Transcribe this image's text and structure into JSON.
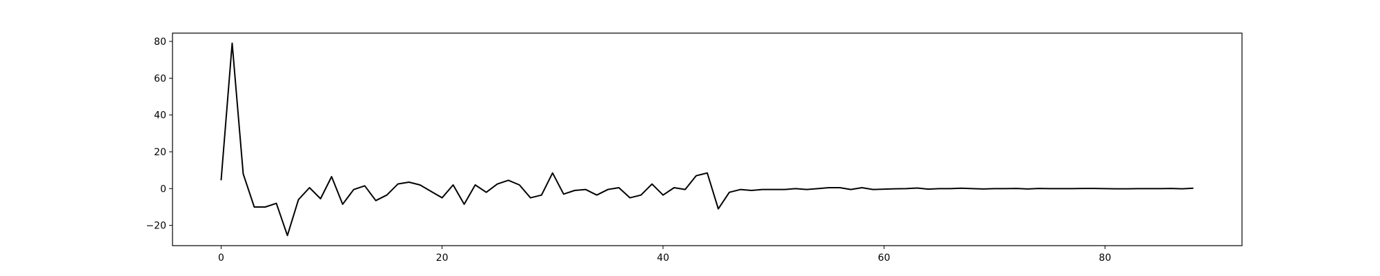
{
  "chart_data": {
    "type": "line",
    "title": "",
    "xlabel": "",
    "ylabel": "",
    "xlim": [
      -4.4,
      92.4
    ],
    "ylim": [
      -31,
      84.5
    ],
    "xticks": [
      0,
      20,
      40,
      60,
      80
    ],
    "yticks": [
      -20,
      0,
      20,
      40,
      60,
      80
    ],
    "xtick_labels": [
      "0",
      "20",
      "40",
      "60",
      "80"
    ],
    "ytick_labels": [
      "−20",
      "0",
      "20",
      "40",
      "60",
      "80"
    ],
    "grid": false,
    "legend": "none",
    "series": [
      {
        "color": "#000000",
        "x": [
          0,
          1,
          2,
          3,
          4,
          5,
          6,
          7,
          8,
          9,
          10,
          11,
          12,
          13,
          14,
          15,
          16,
          17,
          18,
          19,
          20,
          21,
          22,
          23,
          24,
          25,
          26,
          27,
          28,
          29,
          30,
          31,
          32,
          33,
          34,
          35,
          36,
          37,
          38,
          39,
          40,
          41,
          42,
          43,
          44,
          45,
          46,
          47,
          48,
          49,
          50,
          51,
          52,
          53,
          54,
          55,
          56,
          57,
          58,
          59,
          60,
          61,
          62,
          63,
          64,
          65,
          66,
          67,
          68,
          69,
          70,
          71,
          72,
          73,
          74,
          75,
          76,
          77,
          78,
          79,
          80,
          81,
          82,
          83,
          84,
          85,
          86,
          87,
          88
        ],
        "values": [
          4.5,
          79,
          8,
          -10,
          -10,
          -8,
          -25.5,
          -6,
          0.5,
          -5.5,
          6.5,
          -8.5,
          -0.5,
          1.5,
          -6.5,
          -3.5,
          2.5,
          3.5,
          2,
          -1.5,
          -5,
          2,
          -8.5,
          2,
          -2,
          2.5,
          4.5,
          2,
          -5,
          -3.5,
          8.5,
          -3,
          -1,
          -0.5,
          -3.5,
          -0.5,
          0.5,
          -5,
          -3.5,
          2.5,
          -3.5,
          0.5,
          -0.5,
          7,
          8.5,
          -11,
          -2,
          -0.5,
          -1,
          -0.5,
          -0.5,
          -0.5,
          0,
          -0.5,
          0,
          0.5,
          0.5,
          -0.5,
          0.5,
          -0.5,
          -0.3,
          -0.1,
          0,
          0.3,
          -0.3,
          0,
          0,
          0.2,
          0,
          -0.2,
          0,
          0,
          0.1,
          -0.2,
          0.1,
          0,
          0,
          0,
          0.1,
          0.1,
          0,
          -0.1,
          -0.1,
          0,
          0,
          0,
          0.1,
          -0.1,
          0.2
        ]
      }
    ]
  }
}
